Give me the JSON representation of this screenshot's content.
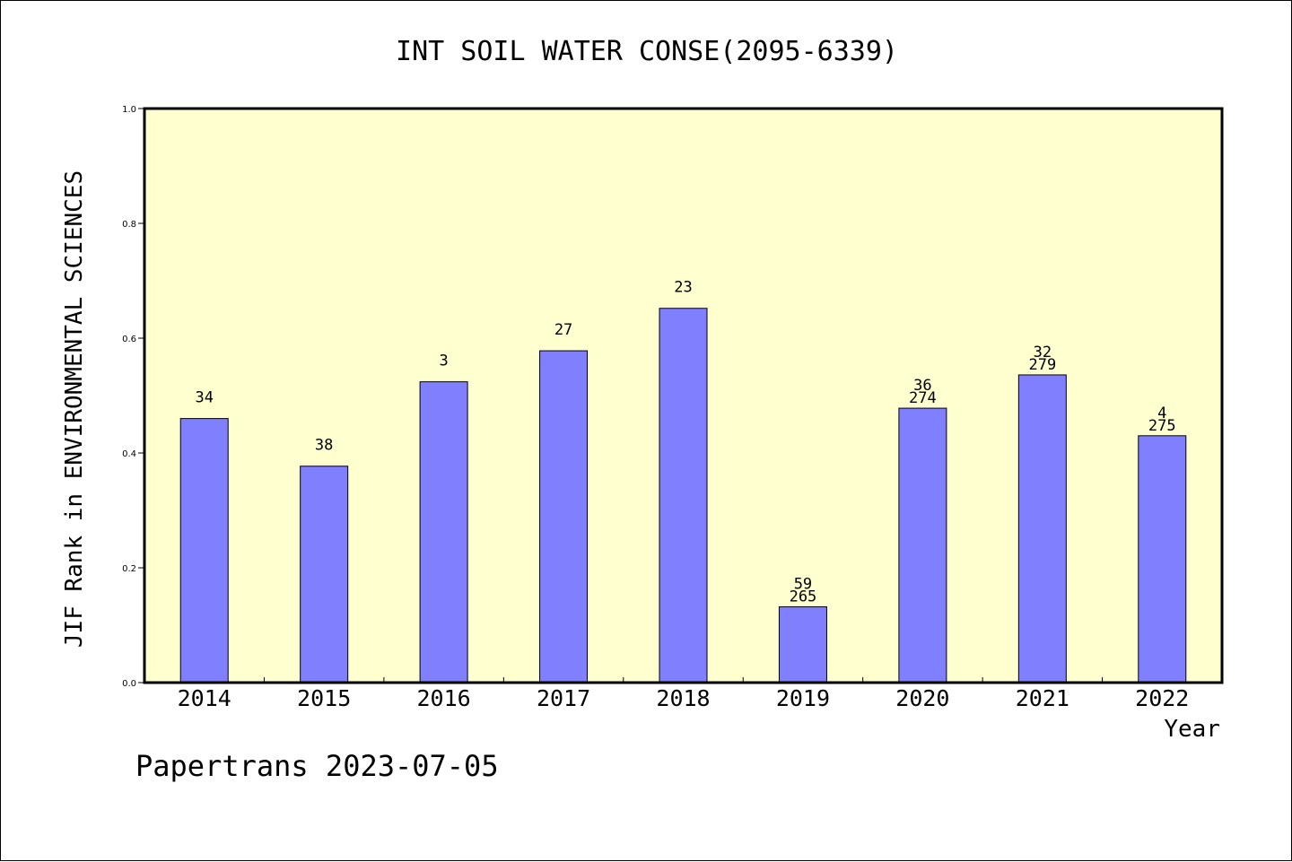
{
  "chart_data": {
    "type": "bar",
    "title": "INT SOIL WATER CONSE(2095-6339)",
    "xlabel": "Year",
    "ylabel": "JIF Rank in ENVIRONMENTAL SCIENCES",
    "ylim": [
      0.0,
      1.0
    ],
    "yticks": [
      "0.0",
      "0.2",
      "0.4",
      "0.6",
      "0.8",
      "1.0"
    ],
    "categories": [
      "2014",
      "2015",
      "2016",
      "2017",
      "2018",
      "2019",
      "2020",
      "2021",
      "2022"
    ],
    "values": [
      0.46,
      0.377,
      0.524,
      0.578,
      0.652,
      0.132,
      0.478,
      0.536,
      0.43
    ],
    "bar_labels": [
      [
        "34"
      ],
      [
        "38"
      ],
      [
        "3"
      ],
      [
        "27"
      ],
      [
        "23"
      ],
      [
        "59",
        "265"
      ],
      [
        "36",
        "274"
      ],
      [
        "32",
        "279"
      ],
      [
        "4",
        "275"
      ]
    ],
    "bar_color": "#8080ff",
    "plot_background": "#ffffd0",
    "grid": false,
    "legend": "none"
  },
  "footer": {
    "credit": "Papertrans 2023-07-05"
  }
}
